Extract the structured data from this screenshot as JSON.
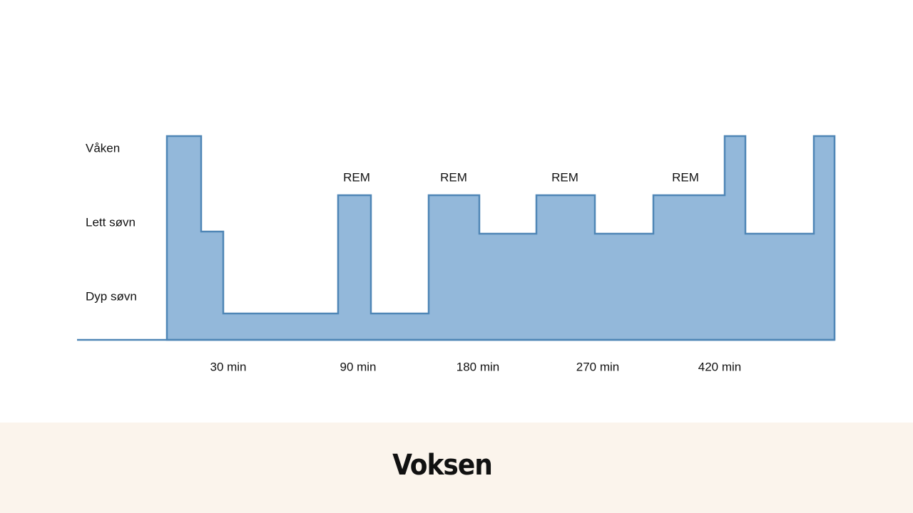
{
  "y_levels": [
    "Våken",
    "Lett søvn",
    "Dyp søvn"
  ],
  "rem_labels": [
    "REM",
    "REM",
    "REM",
    "REM"
  ],
  "x_labels": [
    "30 min",
    "90 min",
    "180 min",
    "270 min",
    "420 min"
  ],
  "title": "Voksen"
}
